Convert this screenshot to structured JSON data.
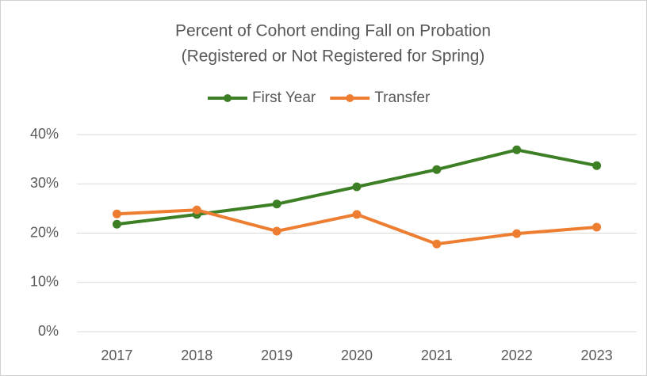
{
  "chart_data": {
    "type": "line",
    "title": "Percent of Cohort ending Fall on Probation",
    "subtitle": "(Registered or Not Registered for Spring)",
    "categories": [
      "2017",
      "2018",
      "2019",
      "2020",
      "2021",
      "2022",
      "2023"
    ],
    "series": [
      {
        "name": "First Year",
        "color": "#3d7f25",
        "values": [
          21.8,
          23.8,
          25.9,
          29.4,
          32.9,
          36.9,
          33.7
        ]
      },
      {
        "name": "Transfer",
        "color": "#ed7d31",
        "values": [
          23.9,
          24.7,
          20.4,
          23.8,
          17.8,
          19.9,
          21.2
        ]
      }
    ],
    "ylim": [
      0,
      40
    ],
    "yticks": [
      {
        "value": 0,
        "label": "0%"
      },
      {
        "value": 10,
        "label": "10%"
      },
      {
        "value": 20,
        "label": "20%"
      },
      {
        "value": 30,
        "label": "30%"
      },
      {
        "value": 40,
        "label": "40%"
      }
    ],
    "grid": true,
    "legend": "top"
  }
}
